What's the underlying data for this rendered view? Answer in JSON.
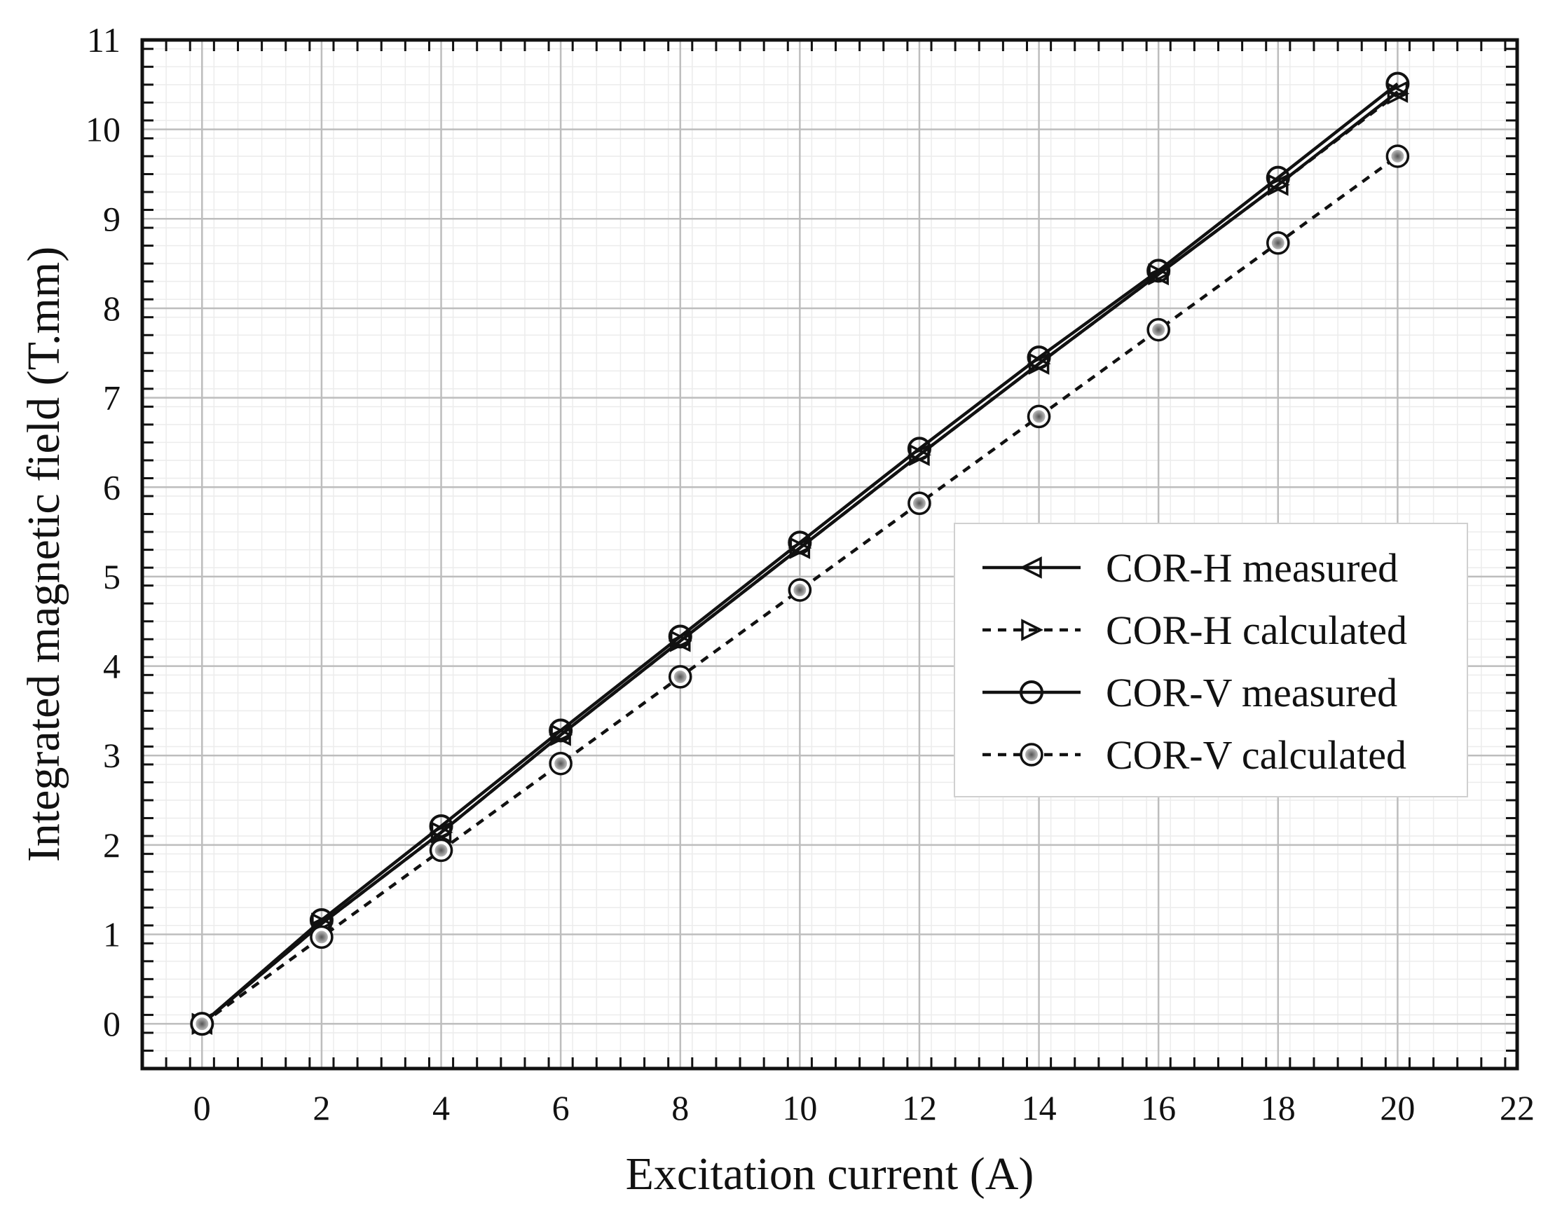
{
  "chart_data": {
    "type": "line",
    "title": "",
    "xlabel": "Excitation current (A)",
    "ylabel": "Integrated magnetic field (T.mm)",
    "xlim": [
      -1,
      22
    ],
    "ylim": [
      -0.5,
      11
    ],
    "xticks": [
      0,
      2,
      4,
      6,
      8,
      10,
      12,
      14,
      16,
      18,
      20,
      22
    ],
    "yticks": [
      0,
      1,
      2,
      3,
      4,
      5,
      6,
      7,
      8,
      9,
      10,
      11
    ],
    "grid": true,
    "legend_position": "center-right",
    "x": [
      0,
      2,
      4,
      6,
      8,
      10,
      12,
      14,
      16,
      18,
      20
    ],
    "series": [
      {
        "name": "COR-H measured",
        "marker": "triangle-left",
        "linestyle": "solid",
        "values": [
          0,
          1.12,
          2.14,
          3.23,
          4.28,
          5.32,
          6.36,
          7.38,
          8.38,
          9.38,
          10.42
        ]
      },
      {
        "name": "COR-H calculated",
        "marker": "triangle-right",
        "linestyle": "dashed",
        "values": [
          0,
          1.12,
          2.14,
          3.23,
          4.28,
          5.32,
          6.36,
          7.38,
          8.38,
          9.38,
          10.4
        ]
      },
      {
        "name": "COR-V measured",
        "marker": "circle-open",
        "linestyle": "solid",
        "values": [
          0,
          1.16,
          2.21,
          3.28,
          4.33,
          5.38,
          6.43,
          7.45,
          8.42,
          9.46,
          10.51
        ]
      },
      {
        "name": "COR-V calculated",
        "marker": "circle-filled",
        "linestyle": "dashed",
        "values": [
          0,
          0.97,
          1.94,
          2.91,
          3.88,
          4.85,
          5.82,
          6.79,
          7.76,
          8.73,
          9.7
        ]
      }
    ]
  }
}
